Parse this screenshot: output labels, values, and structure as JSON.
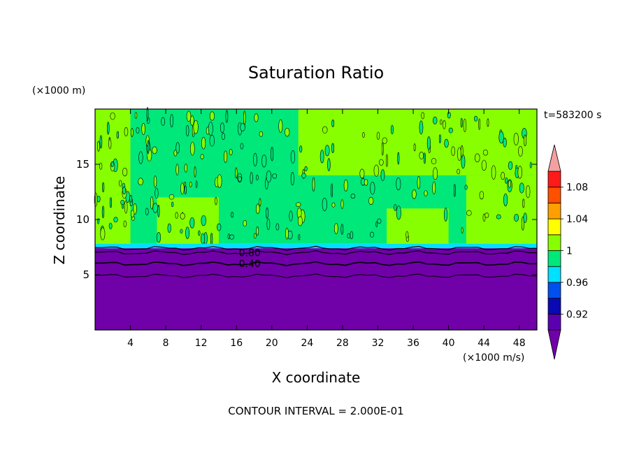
{
  "chart_data": {
    "type": "heatmap",
    "title": "Saturation Ratio",
    "xlabel": "X coordinate",
    "ylabel": "Z coordinate",
    "x_unit_label": "(×1000 m/s)",
    "y_unit_label": "(×1000 m)",
    "time_label": "t=583200 s",
    "footer": "CONTOUR INTERVAL = 2.000E-01",
    "xlim": [
      0,
      50
    ],
    "ylim": [
      0,
      20
    ],
    "x_ticks": [
      4,
      8,
      12,
      16,
      20,
      24,
      28,
      32,
      36,
      40,
      44,
      48
    ],
    "x_tick_labels": [
      "4",
      "8",
      "12",
      "16",
      "20",
      "24",
      "28",
      "32",
      "36",
      "40",
      "44",
      "48"
    ],
    "y_ticks": [
      5,
      10,
      15
    ],
    "y_tick_labels": [
      "5",
      "10",
      "15"
    ],
    "contour_lines": [
      {
        "label": "0.80",
        "x": 17.5,
        "z": 7.0
      },
      {
        "label": "0.40",
        "x": 17.5,
        "z": 6.0
      }
    ],
    "layers": {
      "dry_below_km": 7.4,
      "moist_band_from_km": 7.4,
      "moist_band_to_km": 7.8,
      "saturated_patches": [
        {
          "x0": 0,
          "x1": 4,
          "z0": 7.8,
          "z1": 20
        },
        {
          "x0": 7,
          "x1": 14,
          "z0": 7.8,
          "z1": 12
        },
        {
          "x0": 23,
          "x1": 50,
          "z0": 14,
          "z1": 20
        },
        {
          "x0": 33,
          "x1": 40,
          "z0": 7.8,
          "z1": 11
        },
        {
          "x0": 42,
          "x1": 50,
          "z0": 7.8,
          "z1": 14
        }
      ]
    },
    "colorbar": {
      "levels": [
        0.9,
        0.92,
        0.94,
        0.96,
        0.98,
        1.0,
        1.02,
        1.04,
        1.06,
        1.08,
        1.1
      ],
      "labels": [
        "0.92",
        "0.96",
        "1",
        "1.04",
        "1.08"
      ],
      "label_values": [
        0.92,
        0.96,
        1.0,
        1.04,
        1.08
      ],
      "colors": [
        "#5a00b0",
        "#0a0ab4",
        "#0050f0",
        "#00e0ff",
        "#00e87a",
        "#88ff00",
        "#ffff00",
        "#ffa000",
        "#ff5000",
        "#ff1a1a"
      ],
      "under_color": "#7000a8",
      "over_color": "#f4a0a0"
    }
  }
}
